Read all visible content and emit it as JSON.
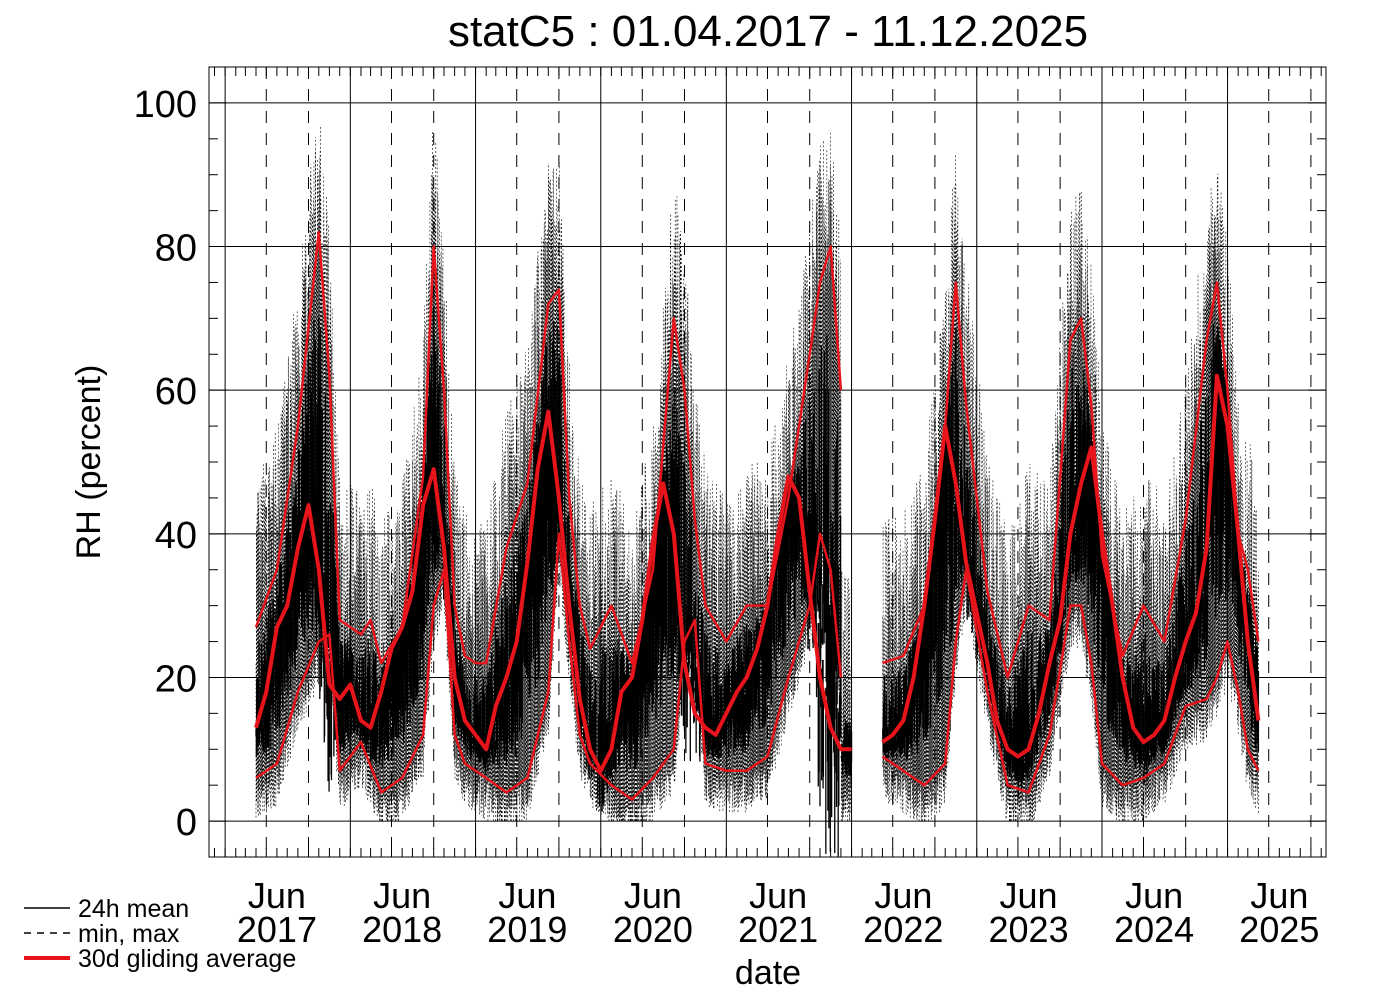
{
  "chart_data": {
    "type": "line",
    "title": "statC5 : 01.04.2017 - 11.12.2025",
    "xlabel": "date",
    "ylabel": "RH (percent)",
    "ylim": [
      -5,
      105
    ],
    "yticks": [
      0,
      20,
      40,
      60,
      80,
      100
    ],
    "x_range": [
      "2016-11-15",
      "2025-10-15"
    ],
    "x_tick_labels": [
      {
        "date": "2017-06-01",
        "line1": "Jun",
        "line2": "2017"
      },
      {
        "date": "2018-06-01",
        "line1": "Jun",
        "line2": "2018"
      },
      {
        "date": "2019-06-01",
        "line1": "Jun",
        "line2": "2019"
      },
      {
        "date": "2020-06-01",
        "line1": "Jun",
        "line2": "2020"
      },
      {
        "date": "2021-06-01",
        "line1": "Jun",
        "line2": "2021"
      },
      {
        "date": "2022-06-01",
        "line1": "Jun",
        "line2": "2022"
      },
      {
        "date": "2023-06-01",
        "line1": "Jun",
        "line2": "2023"
      },
      {
        "date": "2024-06-01",
        "line1": "Jun",
        "line2": "2024"
      },
      {
        "date": "2025-06-01",
        "line1": "Jun",
        "line2": "2025"
      }
    ],
    "grid": true,
    "legend_position": "bottom-left",
    "legend": [
      {
        "label": "24h mean",
        "style": "solid",
        "color": "#000000"
      },
      {
        "label": "min, max",
        "style": "dashed",
        "color": "#000000"
      },
      {
        "label": "30d gliding average",
        "style": "solid-thick",
        "color": "#e8141c"
      }
    ],
    "series": [
      {
        "name": "30d gliding average",
        "color": "#e8141c",
        "x": [
          "2017-04-01",
          "2017-05-01",
          "2017-06-01",
          "2017-07-01",
          "2017-08-01",
          "2017-09-01",
          "2017-10-01",
          "2017-11-01",
          "2017-12-01",
          "2018-01-01",
          "2018-02-01",
          "2018-03-01",
          "2018-04-01",
          "2018-05-01",
          "2018-06-01",
          "2018-07-01",
          "2018-08-01",
          "2018-09-01",
          "2018-10-01",
          "2018-11-01",
          "2018-12-01",
          "2019-01-01",
          "2019-02-01",
          "2019-03-01",
          "2019-04-01",
          "2019-05-01",
          "2019-06-01",
          "2019-07-01",
          "2019-08-01",
          "2019-09-01",
          "2019-10-01",
          "2019-11-01",
          "2019-12-01",
          "2020-01-01",
          "2020-02-01",
          "2020-03-01",
          "2020-04-01",
          "2020-05-01",
          "2020-06-01",
          "2020-07-01",
          "2020-08-01",
          "2020-09-01",
          "2020-10-01",
          "2020-11-01",
          "2020-12-01",
          "2021-01-01",
          "2021-02-01",
          "2021-03-01",
          "2021-04-01",
          "2021-05-01",
          "2021-06-01",
          "2021-07-01",
          "2021-08-01",
          "2021-09-01",
          "2021-10-01",
          "2021-11-01",
          "2021-12-01",
          "2022-01-01",
          "2022-04-01",
          "2022-05-01",
          "2022-06-01",
          "2022-07-01",
          "2022-08-01",
          "2022-09-01",
          "2022-10-01",
          "2022-11-01",
          "2022-12-01",
          "2023-02-01",
          "2023-03-01",
          "2023-04-01",
          "2023-05-01",
          "2023-06-01",
          "2023-07-01",
          "2023-08-01",
          "2023-09-01",
          "2023-10-01",
          "2023-11-01",
          "2023-12-01",
          "2024-01-01",
          "2024-02-01",
          "2024-03-01",
          "2024-04-01",
          "2024-05-01",
          "2024-06-01",
          "2024-07-01",
          "2024-08-01",
          "2024-09-01",
          "2024-10-01",
          "2024-11-01",
          "2024-12-01",
          "2025-01-01",
          "2025-02-01",
          "2025-03-01",
          "2025-04-01"
        ],
        "values": [
          13,
          18,
          27,
          30,
          38,
          44,
          35,
          19,
          17,
          19,
          14,
          13,
          18,
          24,
          27,
          32,
          44,
          49,
          38,
          20,
          14,
          12,
          10,
          16,
          20,
          25,
          36,
          49,
          57,
          45,
          30,
          17,
          10,
          7,
          10,
          18,
          20,
          28,
          39,
          47,
          40,
          22,
          15,
          13,
          12,
          15,
          18,
          20,
          24,
          30,
          40,
          48,
          45,
          32,
          20,
          13,
          10,
          10,
          11,
          12,
          14,
          20,
          30,
          42,
          55,
          47,
          36,
          22,
          14,
          10,
          9,
          10,
          15,
          22,
          28,
          40,
          47,
          52,
          40,
          30,
          20,
          13,
          11,
          12,
          14,
          20,
          25,
          29,
          38,
          62,
          55,
          40,
          25,
          14
        ]
      },
      {
        "name": "30d gliding average max",
        "color": "#e8141c",
        "x": [
          "2017-04-01",
          "2017-06-01",
          "2017-08-01",
          "2017-10-01",
          "2017-11-01",
          "2017-12-01",
          "2018-02-01",
          "2018-03-01",
          "2018-04-01",
          "2018-06-01",
          "2018-08-01",
          "2018-09-01",
          "2018-10-01",
          "2018-11-01",
          "2018-12-01",
          "2019-01-01",
          "2019-02-01",
          "2019-04-01",
          "2019-06-01",
          "2019-08-01",
          "2019-09-01",
          "2019-10-01",
          "2019-11-01",
          "2019-12-01",
          "2020-02-01",
          "2020-04-01",
          "2020-06-01",
          "2020-08-01",
          "2020-09-01",
          "2020-10-01",
          "2020-11-01",
          "2021-01-01",
          "2021-03-01",
          "2021-05-01",
          "2021-07-01",
          "2021-09-01",
          "2021-10-01",
          "2021-11-01",
          "2021-12-01",
          "2022-04-01",
          "2022-06-01",
          "2022-08-01",
          "2022-10-01",
          "2022-11-01",
          "2022-12-01",
          "2023-02-01",
          "2023-04-01",
          "2023-06-01",
          "2023-08-01",
          "2023-10-01",
          "2023-11-01",
          "2023-12-01",
          "2024-01-01",
          "2024-03-01",
          "2024-05-01",
          "2024-07-01",
          "2024-09-01",
          "2024-11-01",
          "2024-12-01",
          "2025-01-01",
          "2025-02-01",
          "2025-03-01",
          "2025-04-01"
        ],
        "values": [
          27,
          35,
          55,
          82,
          62,
          28,
          26,
          28,
          22,
          27,
          48,
          80,
          60,
          30,
          23,
          22,
          22,
          38,
          47,
          72,
          74,
          45,
          30,
          24,
          30,
          22,
          35,
          70,
          60,
          42,
          30,
          25,
          30,
          30,
          45,
          65,
          75,
          80,
          60,
          22,
          23,
          30,
          55,
          75,
          58,
          32,
          20,
          30,
          28,
          67,
          70,
          58,
          37,
          23,
          30,
          25,
          42,
          67,
          75,
          60,
          40,
          35,
          25
        ]
      },
      {
        "name": "30d gliding average min",
        "color": "#e8141c",
        "x": [
          "2017-04-01",
          "2017-06-01",
          "2017-08-01",
          "2017-10-01",
          "2017-11-01",
          "2017-12-01",
          "2018-02-01",
          "2018-04-01",
          "2018-06-01",
          "2018-08-01",
          "2018-09-01",
          "2018-10-01",
          "2018-11-01",
          "2018-12-01",
          "2019-02-01",
          "2019-04-01",
          "2019-06-01",
          "2019-08-01",
          "2019-09-01",
          "2019-10-01",
          "2019-11-01",
          "2019-12-01",
          "2020-02-01",
          "2020-04-01",
          "2020-06-01",
          "2020-08-01",
          "2020-09-01",
          "2020-10-01",
          "2020-11-01",
          "2021-01-01",
          "2021-03-01",
          "2021-05-01",
          "2021-07-01",
          "2021-09-01",
          "2021-10-01",
          "2021-11-01",
          "2021-12-01",
          "2022-04-01",
          "2022-06-01",
          "2022-08-01",
          "2022-10-01",
          "2022-11-01",
          "2022-12-01",
          "2023-02-01",
          "2023-04-01",
          "2023-06-01",
          "2023-08-01",
          "2023-10-01",
          "2023-11-01",
          "2023-12-01",
          "2024-01-01",
          "2024-03-01",
          "2024-05-01",
          "2024-07-01",
          "2024-09-01",
          "2024-11-01",
          "2024-12-01",
          "2025-01-01",
          "2025-02-01",
          "2025-03-01",
          "2025-04-01"
        ],
        "values": [
          6,
          8,
          18,
          25,
          26,
          7,
          11,
          4,
          6,
          12,
          30,
          35,
          12,
          8,
          6,
          4,
          6,
          18,
          40,
          25,
          12,
          8,
          5,
          3,
          6,
          10,
          25,
          28,
          8,
          7,
          7,
          9,
          20,
          30,
          40,
          35,
          20,
          9,
          7,
          5,
          8,
          25,
          35,
          18,
          5,
          4,
          12,
          30,
          30,
          22,
          8,
          5,
          6,
          8,
          16,
          17,
          20,
          25,
          18,
          10,
          7
        ]
      }
    ],
    "daily_mean": "black vertical bars",
    "daily_min_max": "black dotted bars"
  }
}
